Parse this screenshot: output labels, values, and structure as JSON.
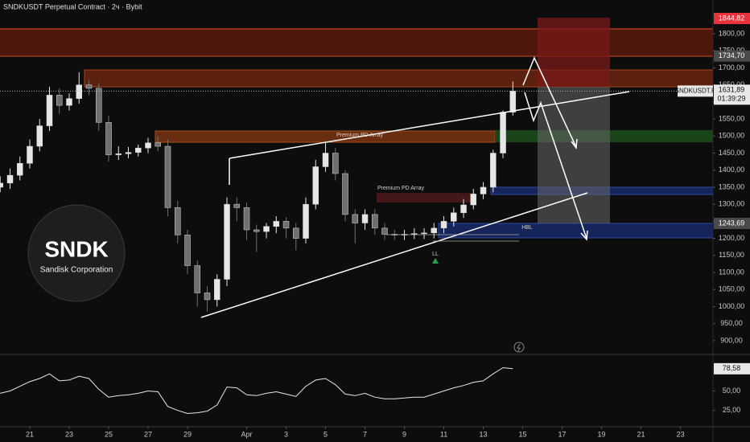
{
  "chart_data": [
    {
      "type": "candlestick",
      "title": "SNDKUSDT Perpetual Contract · 2ч · Bybit",
      "symbol_label": "SNDKUSDT.P",
      "countdown": "01:39:29",
      "up_color": "#e6e6e6",
      "down_color": "#6f6f6f",
      "x": [
        -1.5,
        -1,
        -0.5,
        0,
        0.5,
        1,
        1.5,
        2,
        2.5,
        3,
        3.5,
        4,
        4.5,
        5,
        5.5,
        6,
        6.5,
        7,
        7.5,
        8,
        8.5,
        9,
        9.5,
        10,
        10.5,
        11,
        11.5,
        12,
        12.5,
        13,
        13.5,
        14,
        14.5,
        15,
        15.5,
        16,
        16.5,
        17,
        17.5,
        18,
        18.5,
        19,
        19.5,
        20,
        20.5,
        21,
        21.5,
        22,
        22.5,
        23,
        23.5,
        24,
        24.5
      ],
      "open": [
        1350,
        1362,
        1385,
        1420,
        1470,
        1530,
        1620,
        1590,
        1610,
        1650,
        1640,
        1540,
        1445,
        1448,
        1452,
        1465,
        1480,
        1470,
        1290,
        1210,
        1120,
        1040,
        1020,
        1080,
        1300,
        1290,
        1225,
        1220,
        1235,
        1250,
        1230,
        1200,
        1300,
        1410,
        1450,
        1390,
        1270,
        1245,
        1270,
        1230,
        1212,
        1210,
        1212,
        1214,
        1216,
        1230,
        1250,
        1275,
        1298,
        1330,
        1350,
        1450,
        1570
      ],
      "high": [
        1382,
        1405,
        1440,
        1490,
        1550,
        1645,
        1640,
        1625,
        1687,
        1665,
        1655,
        1560,
        1470,
        1468,
        1475,
        1495,
        1500,
        1490,
        1310,
        1225,
        1135,
        1060,
        1095,
        1320,
        1320,
        1305,
        1240,
        1245,
        1265,
        1262,
        1245,
        1320,
        1430,
        1480,
        1465,
        1400,
        1285,
        1285,
        1285,
        1245,
        1225,
        1225,
        1230,
        1230,
        1245,
        1265,
        1290,
        1315,
        1345,
        1365,
        1460,
        1575,
        1660
      ],
      "low": [
        1335,
        1345,
        1370,
        1405,
        1455,
        1515,
        1565,
        1575,
        1595,
        1620,
        1515,
        1425,
        1430,
        1435,
        1440,
        1450,
        1455,
        1265,
        1185,
        1095,
        1000,
        985,
        1000,
        1060,
        1250,
        1195,
        1160,
        1200,
        1215,
        1200,
        1165,
        1185,
        1285,
        1395,
        1370,
        1250,
        1185,
        1225,
        1210,
        1195,
        1195,
        1195,
        1198,
        1198,
        1200,
        1215,
        1235,
        1260,
        1285,
        1315,
        1335,
        1435,
        1560
      ],
      "close": [
        1362,
        1385,
        1420,
        1470,
        1530,
        1620,
        1590,
        1610,
        1650,
        1640,
        1540,
        1445,
        1448,
        1452,
        1465,
        1480,
        1470,
        1290,
        1210,
        1120,
        1040,
        1020,
        1080,
        1300,
        1290,
        1225,
        1220,
        1235,
        1250,
        1230,
        1200,
        1300,
        1410,
        1450,
        1390,
        1270,
        1245,
        1270,
        1230,
        1212,
        1210,
        1212,
        1214,
        1216,
        1230,
        1250,
        1275,
        1298,
        1330,
        1350,
        1450,
        1570,
        1631.89
      ],
      "current_price": {
        "value": 1631.89,
        "label": "1631,89"
      },
      "price_markers": [
        {
          "value": 1844.82,
          "label": "1844,82",
          "color": "#e8333d"
        },
        {
          "value": 1734.7,
          "label": "1734,70",
          "color": "#4a4a4a"
        },
        {
          "value": 1243.69,
          "label": "1243,69",
          "color": "#4a4a4a"
        }
      ],
      "annotations": [
        "Premium PD Array",
        "Premium PD Array",
        "HBL",
        "LL"
      ],
      "logo": {
        "name": "SNDK",
        "company": "Sandisk Corporation"
      },
      "xlim": [
        -1.51,
        34.65
      ],
      "xticks": [
        {
          "value": 0,
          "label": "21"
        },
        {
          "value": 2,
          "label": "23"
        },
        {
          "value": 4,
          "label": "25"
        },
        {
          "value": 6,
          "label": "27"
        },
        {
          "value": 8,
          "label": "29"
        },
        {
          "value": 11,
          "label": "Apr"
        },
        {
          "value": 13,
          "label": "3"
        },
        {
          "value": 15,
          "label": "5"
        },
        {
          "value": 17,
          "label": "7"
        },
        {
          "value": 19,
          "label": "9"
        },
        {
          "value": 21,
          "label": "11"
        },
        {
          "value": 23,
          "label": "13"
        },
        {
          "value": 25,
          "label": "15"
        },
        {
          "value": 27,
          "label": "17"
        },
        {
          "value": 29,
          "label": "19"
        },
        {
          "value": 31,
          "label": "21"
        },
        {
          "value": 33,
          "label": "23"
        }
      ],
      "ylim": [
        862,
        1899
      ],
      "yticks": [
        {
          "value": 900,
          "label": "900,00"
        },
        {
          "value": 950,
          "label": "950,00"
        },
        {
          "value": 1000,
          "label": "1000,00"
        },
        {
          "value": 1050,
          "label": "1050,00"
        },
        {
          "value": 1100,
          "label": "1100,00"
        },
        {
          "value": 1150,
          "label": "1150,00"
        },
        {
          "value": 1200,
          "label": "1200,00"
        },
        {
          "value": 1250,
          "label": "1250,00"
        },
        {
          "value": 1300,
          "label": "1300,00"
        },
        {
          "value": 1350,
          "label": "1350,00"
        },
        {
          "value": 1400,
          "label": "1400,00"
        },
        {
          "value": 1450,
          "label": "1450,00"
        },
        {
          "value": 1500,
          "label": "1500,00"
        },
        {
          "value": 1550,
          "label": "1550,00"
        },
        {
          "value": 1600,
          "label": "1600,00"
        },
        {
          "value": 1650,
          "label": "1650,00"
        },
        {
          "value": 1700,
          "label": "1700,00"
        },
        {
          "value": 1750,
          "label": "1750,00"
        },
        {
          "value": 1800,
          "label": "1800,00"
        }
      ]
    },
    {
      "type": "line",
      "color": "#e8e8e8",
      "x": [
        -1.5,
        -1,
        -0.5,
        0,
        0.5,
        1,
        1.5,
        2,
        2.5,
        3,
        3.5,
        4,
        4.5,
        5,
        5.5,
        6,
        6.5,
        7,
        7.5,
        8,
        8.5,
        9,
        9.5,
        10,
        10.5,
        11,
        11.5,
        12,
        12.5,
        13,
        13.5,
        14,
        14.5,
        15,
        15.5,
        16,
        16.5,
        17,
        17.5,
        18,
        18.5,
        19,
        19.5,
        20,
        20.5,
        21,
        21.5,
        22,
        22.5,
        23,
        23.5,
        24,
        24.5
      ],
      "values": [
        47,
        50,
        56,
        62,
        66,
        72,
        63,
        64,
        69,
        66,
        52,
        42,
        44,
        45,
        47,
        50,
        49,
        30,
        25,
        21,
        22,
        24,
        32,
        55,
        54,
        45,
        44,
        47,
        49,
        46,
        43,
        56,
        64,
        66,
        58,
        46,
        44,
        47,
        42,
        40,
        40,
        41,
        42,
        42,
        46,
        50,
        54,
        57,
        61,
        63,
        72,
        80,
        78.58
      ],
      "current_label": {
        "value": 78.58,
        "label": "78,58"
      },
      "xlim": [
        -1.51,
        34.65
      ],
      "ylim": [
        5,
        96
      ],
      "yticks": [
        {
          "value": 25,
          "label": "25,00"
        },
        {
          "value": 50,
          "label": "50,00"
        }
      ]
    }
  ]
}
